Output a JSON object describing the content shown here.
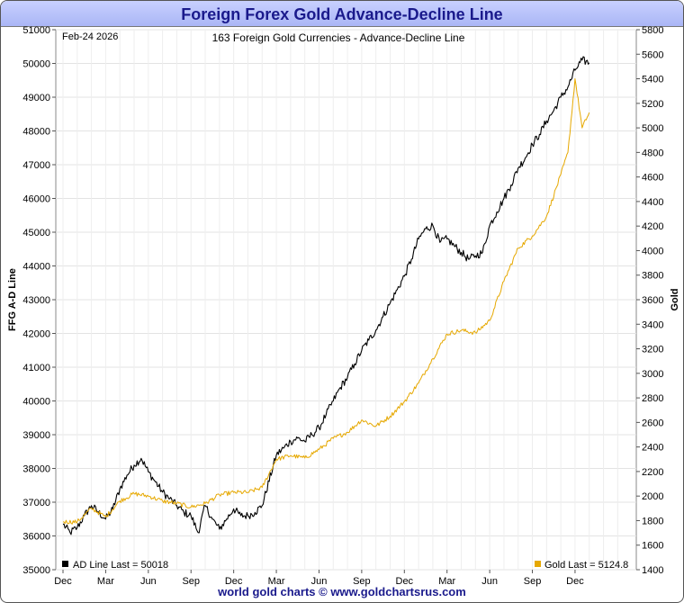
{
  "title": "Foreign Forex Gold Advance-Decline Line",
  "footer": "world gold charts © www.goldchartsrus.com",
  "chart_data": {
    "type": "line",
    "date_label": "Feb-24  2026",
    "subtitle": "163 Foreign Gold Currencies - Advance-Decline Line",
    "ylabel_left": "FFG A-D Line",
    "ylabel_right": "Gold",
    "ylim_left": [
      35000,
      51000
    ],
    "ylim_right": [
      1400,
      5800
    ],
    "yticks_left": [
      35000,
      36000,
      37000,
      38000,
      39000,
      40000,
      41000,
      42000,
      43000,
      44000,
      45000,
      46000,
      47000,
      48000,
      49000,
      50000,
      51000
    ],
    "yticks_right": [
      1400,
      1600,
      1800,
      2000,
      2200,
      2400,
      2600,
      2800,
      3000,
      3200,
      3400,
      3600,
      3800,
      4000,
      4200,
      4400,
      4600,
      4800,
      5000,
      5200,
      5400,
      5600,
      5800
    ],
    "x_ticks": [
      "Dec",
      "Mar",
      "Jun",
      "Sep",
      "Dec",
      "Mar",
      "Jun",
      "Sep",
      "Dec",
      "Mar",
      "Jun",
      "Sep",
      "Dec"
    ],
    "x_range_months": [
      0,
      39.8
    ],
    "legend_ad": "AD Line Last = 50018",
    "legend_gold": "Gold  Last = 5124.8",
    "series": [
      {
        "name": "AD Line",
        "axis": "left",
        "color": "#000000",
        "points": [
          [
            0,
            36350
          ],
          [
            0.5,
            36100
          ],
          [
            1,
            36250
          ],
          [
            1.5,
            36600
          ],
          [
            2,
            36900
          ],
          [
            2.5,
            36700
          ],
          [
            3,
            36500
          ],
          [
            3.5,
            36800
          ],
          [
            4,
            37400
          ],
          [
            4.5,
            37800
          ],
          [
            5,
            38100
          ],
          [
            5.5,
            38300
          ],
          [
            6,
            37900
          ],
          [
            6.5,
            37600
          ],
          [
            7,
            37300
          ],
          [
            7.5,
            37100
          ],
          [
            8,
            36900
          ],
          [
            8.5,
            36700
          ],
          [
            9,
            36600
          ],
          [
            9.5,
            36100
          ],
          [
            10,
            36900
          ],
          [
            10.5,
            36500
          ],
          [
            11,
            36200
          ],
          [
            11.5,
            36500
          ],
          [
            12,
            36800
          ],
          [
            12.5,
            36600
          ],
          [
            13,
            36600
          ],
          [
            13.5,
            36700
          ],
          [
            14,
            36900
          ],
          [
            15,
            38400
          ],
          [
            15.5,
            38600
          ],
          [
            16,
            38800
          ],
          [
            16.5,
            38900
          ],
          [
            17,
            38800
          ],
          [
            17.5,
            39000
          ],
          [
            18,
            39200
          ],
          [
            18.5,
            39600
          ],
          [
            19,
            40000
          ],
          [
            19.5,
            40400
          ],
          [
            20,
            40700
          ],
          [
            20.5,
            41100
          ],
          [
            21,
            41500
          ],
          [
            21.5,
            41800
          ],
          [
            22,
            42100
          ],
          [
            22.5,
            42500
          ],
          [
            23,
            42900
          ],
          [
            23.5,
            43300
          ],
          [
            24,
            43700
          ],
          [
            24.5,
            44200
          ],
          [
            25,
            44800
          ],
          [
            25.5,
            45100
          ],
          [
            26,
            45200
          ],
          [
            26.5,
            44700
          ],
          [
            27,
            44800
          ],
          [
            27.5,
            44600
          ],
          [
            28,
            44400
          ],
          [
            28.5,
            44200
          ],
          [
            29,
            44300
          ],
          [
            29.5,
            44400
          ],
          [
            30,
            45200
          ],
          [
            30.5,
            45600
          ],
          [
            31,
            46000
          ],
          [
            31.5,
            46400
          ],
          [
            32,
            46900
          ],
          [
            32.5,
            47200
          ],
          [
            33,
            47600
          ],
          [
            33.5,
            47900
          ],
          [
            34,
            48300
          ],
          [
            34.5,
            48600
          ],
          [
            35,
            49000
          ],
          [
            35.5,
            49300
          ],
          [
            36,
            49800
          ],
          [
            36.5,
            50100
          ],
          [
            37,
            50018
          ]
        ]
      },
      {
        "name": "Gold",
        "axis": "right",
        "color": "#e6a800",
        "points": [
          [
            0,
            1790
          ],
          [
            1,
            1790
          ],
          [
            2,
            1900
          ],
          [
            3,
            1830
          ],
          [
            4,
            1960
          ],
          [
            5,
            2020
          ],
          [
            6,
            2000
          ],
          [
            7,
            1960
          ],
          [
            8,
            1940
          ],
          [
            9,
            1910
          ],
          [
            10,
            1940
          ],
          [
            11,
            2010
          ],
          [
            12,
            2030
          ],
          [
            13,
            2030
          ],
          [
            14,
            2070
          ],
          [
            15,
            2300
          ],
          [
            16,
            2330
          ],
          [
            17,
            2310
          ],
          [
            18,
            2380
          ],
          [
            19,
            2470
          ],
          [
            20,
            2520
          ],
          [
            21,
            2620
          ],
          [
            22,
            2570
          ],
          [
            23,
            2650
          ],
          [
            24,
            2770
          ],
          [
            25,
            2920
          ],
          [
            26,
            3120
          ],
          [
            27,
            3320
          ],
          [
            28,
            3350
          ],
          [
            29,
            3330
          ],
          [
            30,
            3430
          ],
          [
            31,
            3750
          ],
          [
            32,
            4020
          ],
          [
            33,
            4120
          ],
          [
            34,
            4280
          ],
          [
            35,
            4620
          ],
          [
            35.5,
            4800
          ],
          [
            36,
            5400
          ],
          [
            36.5,
            5000
          ],
          [
            37,
            5124.8
          ]
        ]
      }
    ]
  }
}
